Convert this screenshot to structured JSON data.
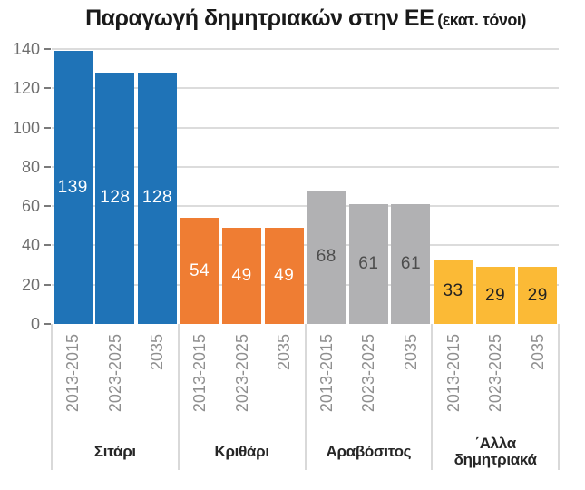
{
  "chart_data": {
    "type": "bar",
    "title": "Παραγωγή δημητριακών στην ΕΕ",
    "title_suffix": "(εκατ. τόνοι)",
    "xlabel": "",
    "ylabel": "",
    "ylim": [
      0,
      140
    ],
    "yticks": [
      0,
      20,
      40,
      60,
      80,
      100,
      120,
      140
    ],
    "grid": "horizontal",
    "legend": "none",
    "categories": [
      "2013-2015",
      "2023-2025",
      "2035"
    ],
    "groups": [
      {
        "name": "Σιτάρι",
        "label_lines": [
          "Σιτάρι"
        ],
        "color": "#1F73B7",
        "value_label_color": "#FFFFFF",
        "values": [
          139,
          128,
          128
        ]
      },
      {
        "name": "Κριθάρι",
        "label_lines": [
          "Κριθάρι"
        ],
        "color": "#EF7D33",
        "value_label_color": "#FFFFFF",
        "values": [
          54,
          49,
          49
        ]
      },
      {
        "name": "Αραβόσιτος",
        "label_lines": [
          "Αραβόσιτος"
        ],
        "color": "#B1B1B3",
        "value_label_color": "#4D4D4D",
        "values": [
          68,
          61,
          61
        ]
      },
      {
        "name": "΄Αλλα δημητριακά",
        "label_lines": [
          "΄Αλλα",
          "δημητριακά"
        ],
        "color": "#FBBA36",
        "value_label_color": "#222222",
        "values": [
          33,
          29,
          29
        ]
      }
    ],
    "style_colors": {
      "gridline": "#DCDCDC",
      "separator": "#D9D9D9",
      "y_axis_label": "#6E6E6E",
      "y_axis_tick": "#7A7A7A",
      "x_axis_label": "#8F8F8F",
      "category_label": "#262626",
      "title": "#1A1A1A"
    }
  }
}
